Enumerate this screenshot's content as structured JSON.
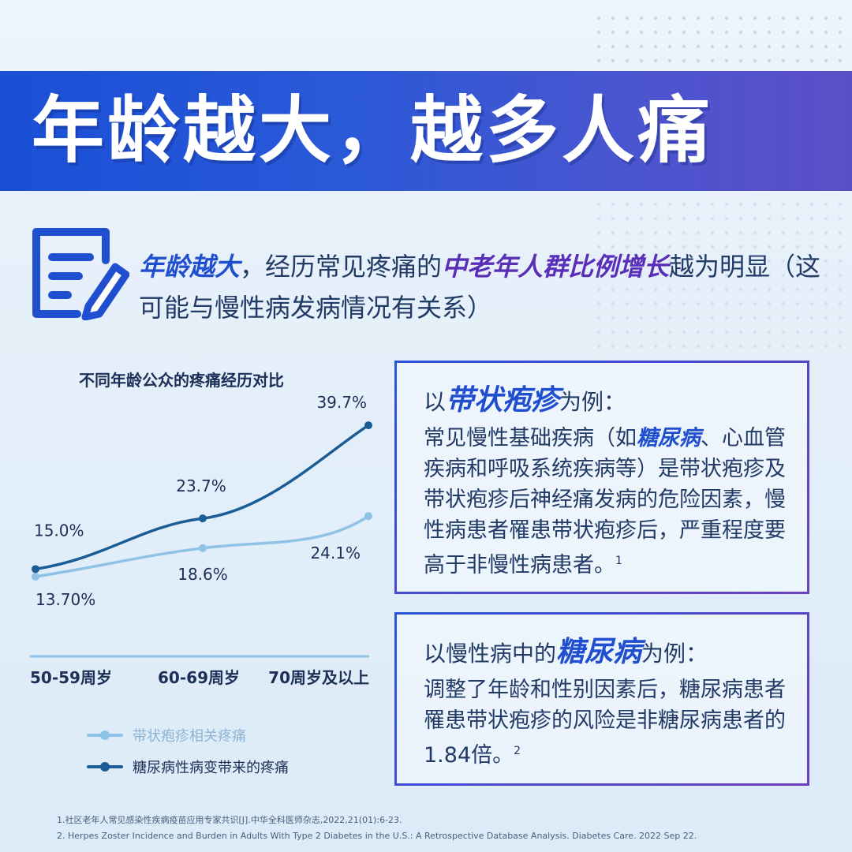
{
  "banner": {
    "title": "年龄越大，越多人痛"
  },
  "intro": {
    "part1": "年龄越大",
    "part2": "，经历常见疼痛的",
    "part3": "中老年人群比例增长",
    "part4": "越为明显（这可能与慢性病发病情况有关系）"
  },
  "chart_data": {
    "type": "line",
    "title": "不同年龄公众的疼痛经历对比",
    "categories": [
      "50-59周岁",
      "60-69周岁",
      "70周岁及以上"
    ],
    "series": [
      {
        "name": "带状疱疹相关疼痛",
        "values": [
          13.7,
          18.6,
          24.1
        ],
        "labels": [
          "13.70%",
          "18.6%",
          "24.1%"
        ],
        "color": "#8fc3e6"
      },
      {
        "name": "糖尿病性病变带来的疼痛",
        "values": [
          15.0,
          23.7,
          39.7
        ],
        "labels": [
          "15.0%",
          "23.7%",
          "39.7%"
        ],
        "color": "#1a5c96"
      }
    ],
    "ylim": [
      0,
      45
    ],
    "grid": false,
    "legend_position": "bottom-left"
  },
  "card1": {
    "title_pre": "以",
    "title_em": "带状疱疹",
    "title_post": "为例：",
    "body_pre": "常见慢性基础疾病（如",
    "body_em": "糖尿病",
    "body_post": "、心血管疾病和呼吸系统疾病等）是带状疱疹及带状疱疹后神经痛发病的危险因素，慢性病患者罹患带状疱疹后，严重程度要高于非慢性病患者。",
    "sup": "1"
  },
  "card2": {
    "title_pre": "以慢性病中的",
    "title_em": "糖尿病",
    "title_post": "为例：",
    "body": "调整了年龄和性别因素后，糖尿病患者罹患带状疱疹的风险是非糖尿病患者的1.84倍。",
    "sup": "2"
  },
  "references": [
    "1.社区老年人常见感染性疾病疫苗应用专家共识[J].中华全科医师杂志,2022,21(01):6-23.",
    "2. Herpes Zoster Incidence and Burden in Adults With Type 2 Diabetes in the U.S.: A Retrospective Database Analysis. Diabetes Care. 2022 Sep 22."
  ],
  "colors": {
    "banner_start": "#1a4fd6",
    "banner_end": "#5b4fc9",
    "accent_blue": "#1f4fcf",
    "accent_purple": "#5a2fb8"
  }
}
